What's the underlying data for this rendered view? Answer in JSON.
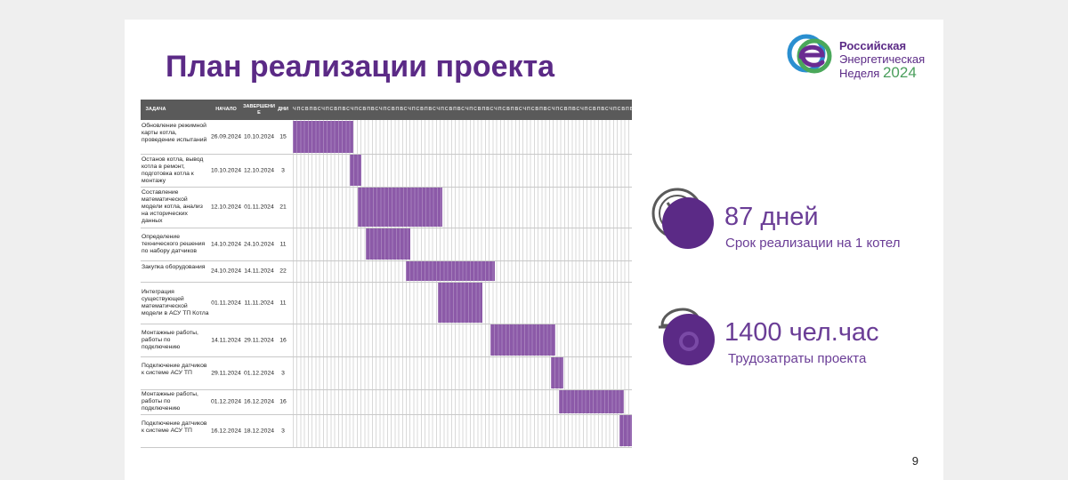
{
  "slide": {
    "title": "План реализации проекта",
    "page_number": "9"
  },
  "logo": {
    "line1": "Российская",
    "line2": "Энергетическая",
    "line3": "Неделя",
    "year": "2024"
  },
  "colors": {
    "accent": "#5b2a86",
    "bar": "#8c5aa8",
    "header": "#5a5a5a",
    "logo_green": "#4a9e5c"
  },
  "gantt_headers": {
    "task": "ЗАДАЧА",
    "start": "НАЧАЛО",
    "end": "ЗАВЕРШЕНИЕ",
    "days": "ДНИ"
  },
  "chart_data": {
    "type": "gantt",
    "title": "План реализации проекта",
    "timeline_start": "26.09.2024",
    "timeline_end": "18.12.2024",
    "tasks": [
      {
        "task": "Обновление режимной карты котла, проведение испытаний",
        "start": "26.09.2024",
        "end": "10.10.2024",
        "days": "15"
      },
      {
        "task": "Останов котла, вывод котла в ремонт, подготовка котла к монтажу",
        "start": "10.10.2024",
        "end": "12.10.2024",
        "days": "3"
      },
      {
        "task": "Составление математической модели котла, анализ на исторических данных",
        "start": "12.10.2024",
        "end": "01.11.2024",
        "days": "21"
      },
      {
        "task": "Определение технического решения по набору датчиков",
        "start": "14.10.2024",
        "end": "24.10.2024",
        "days": "11"
      },
      {
        "task": "Закупка оборудования",
        "start": "24.10.2024",
        "end": "14.11.2024",
        "days": "22"
      },
      {
        "task": "Интеграция существующей математической модели в АСУ ТП Котла",
        "start": "01.11.2024",
        "end": "11.11.2024",
        "days": "11"
      },
      {
        "task": "Монтажные работы, работы по подключению",
        "start": "14.11.2024",
        "end": "29.11.2024",
        "days": "16"
      },
      {
        "task": "Подключение датчиков к системе АСУ ТП",
        "start": "29.11.2024",
        "end": "01.12.2024",
        "days": "3"
      },
      {
        "task": "Монтажные работы, работы по подключению",
        "start": "01.12.2024",
        "end": "16.12.2024",
        "days": "16"
      },
      {
        "task": "Подключение датчиков к системе АСУ ТП",
        "start": "16.12.2024",
        "end": "18.12.2024",
        "days": "3"
      }
    ]
  },
  "stats": [
    {
      "value": "87 дней",
      "label": "Срок реализации на 1 котел",
      "icon": "stopwatch-icon"
    },
    {
      "value": "1400 чел.час",
      "label": "Трудозатраты проекта",
      "icon": "hardhat-gear-icon"
    }
  ]
}
